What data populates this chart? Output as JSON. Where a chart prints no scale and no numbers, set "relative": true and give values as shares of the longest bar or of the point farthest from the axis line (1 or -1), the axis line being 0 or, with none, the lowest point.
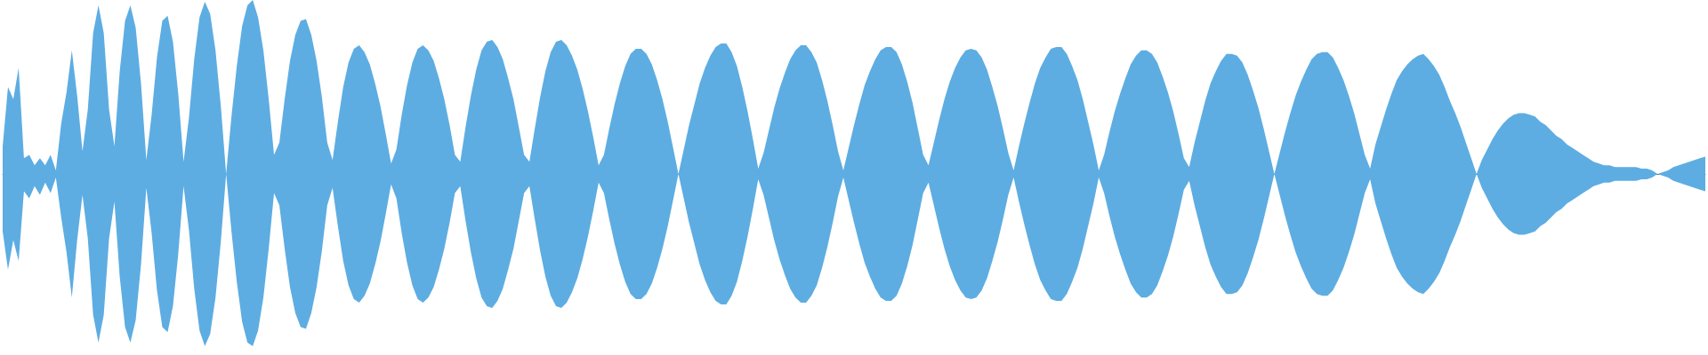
{
  "chart_data": {
    "type": "area",
    "relative": true,
    "categories": [
      null,
      null,
      null,
      null,
      null,
      null,
      null,
      null,
      null,
      null,
      null,
      null,
      null,
      null,
      null,
      null,
      null,
      null,
      null,
      null,
      null,
      null,
      null,
      null,
      null,
      null,
      null,
      null,
      null,
      null,
      null,
      null,
      null,
      null,
      null,
      null,
      null,
      null,
      null,
      null,
      null,
      null,
      null,
      null,
      null,
      null,
      null,
      null,
      null,
      null,
      null,
      null,
      null,
      null,
      null,
      null,
      null,
      null,
      null,
      null,
      null,
      null,
      null,
      null,
      null,
      null,
      null,
      null,
      null,
      null,
      null,
      null,
      null,
      null,
      null,
      null,
      null,
      null,
      null,
      null,
      null,
      null,
      null,
      null,
      null,
      null,
      null,
      null,
      null,
      null,
      null,
      null,
      null,
      null,
      null,
      null,
      null,
      null,
      null,
      null,
      null,
      null,
      null,
      null,
      null,
      null,
      null,
      null,
      null,
      null,
      null,
      null,
      null,
      null,
      null,
      null,
      null,
      null,
      null,
      null,
      null,
      null,
      null,
      null,
      null,
      null,
      null,
      null,
      null,
      null,
      null,
      null,
      null,
      null,
      null,
      null,
      null,
      null,
      null,
      null,
      null,
      null,
      null,
      null,
      null,
      null,
      null,
      null,
      null,
      null,
      null,
      null,
      null,
      null,
      null,
      null,
      null,
      null,
      null,
      null,
      null,
      null,
      null,
      null,
      null,
      null,
      null,
      null,
      null,
      null,
      null,
      null,
      null,
      null,
      null,
      null,
      null,
      null,
      null,
      null,
      null,
      null,
      null,
      null,
      null,
      null,
      null,
      null,
      null,
      null,
      null,
      null,
      null,
      null,
      null,
      null,
      null,
      null,
      null,
      null,
      null,
      null,
      null,
      null,
      null,
      null,
      null,
      null,
      null,
      null,
      null,
      null,
      null,
      null,
      null,
      null,
      null,
      null,
      null,
      null,
      null,
      null,
      null,
      null,
      null,
      null,
      null,
      null,
      null,
      null,
      null,
      null,
      null,
      null,
      null,
      null,
      null,
      null,
      null,
      null,
      null,
      null,
      null,
      null,
      null,
      null,
      null,
      null,
      null,
      null,
      null,
      null,
      null,
      null,
      null,
      null,
      null,
      null,
      null,
      null,
      null,
      null,
      null,
      null,
      null,
      null,
      null,
      null,
      null,
      null,
      null,
      null,
      null,
      null,
      null,
      null,
      null,
      null,
      null,
      null,
      null,
      null,
      null,
      null,
      null,
      null,
      null,
      null,
      null,
      null,
      null,
      null,
      null,
      null,
      null,
      null,
      null,
      null,
      null,
      null,
      null,
      null,
      null,
      null,
      null,
      null,
      null,
      null,
      null,
      null,
      null,
      null,
      null,
      null,
      null,
      null,
      null,
      null,
      null,
      null,
      null
    ],
    "series": [
      {
        "color": "#5dade2",
        "values": [
          0.16,
          0.5,
          0.43,
          0.61,
          0.09,
          0.11,
          0.05,
          0.09,
          0.05,
          0.11,
          0.02,
          0.29,
          0.47,
          0.71,
          0.45,
          0.13,
          0.37,
          0.81,
          0.97,
          0.81,
          0.37,
          0.16,
          0.59,
          0.88,
          0.97,
          0.84,
          0.52,
          0.08,
          0.34,
          0.67,
          0.88,
          0.91,
          0.76,
          0.46,
          0.07,
          0.32,
          0.66,
          0.9,
          0.99,
          0.92,
          0.71,
          0.39,
          0,
          0.33,
          0.62,
          0.85,
          0.97,
          1.0,
          0.9,
          0.71,
          0.43,
          0.11,
          0.18,
          0.43,
          0.65,
          0.8,
          0.88,
          0.89,
          0.8,
          0.65,
          0.44,
          0.18,
          0.08,
          0.3,
          0.5,
          0.64,
          0.72,
          0.74,
          0.7,
          0.63,
          0.52,
          0.39,
          0.23,
          0.06,
          0.14,
          0.34,
          0.51,
          0.64,
          0.72,
          0.74,
          0.71,
          0.65,
          0.55,
          0.43,
          0.28,
          0.11,
          0.07,
          0.27,
          0.45,
          0.6,
          0.71,
          0.76,
          0.77,
          0.73,
          0.66,
          0.55,
          0.43,
          0.27,
          0.11,
          0.07,
          0.26,
          0.44,
          0.59,
          0.7,
          0.76,
          0.77,
          0.74,
          0.68,
          0.6,
          0.49,
          0.36,
          0.21,
          0.05,
          0.11,
          0.26,
          0.4,
          0.52,
          0.62,
          0.69,
          0.72,
          0.72,
          0.69,
          0.63,
          0.54,
          0.43,
          0.3,
          0.15,
          0,
          0.14,
          0.28,
          0.4,
          0.52,
          0.61,
          0.68,
          0.73,
          0.75,
          0.75,
          0.7,
          0.62,
          0.5,
          0.36,
          0.2,
          0.03,
          0.12,
          0.25,
          0.38,
          0.49,
          0.58,
          0.66,
          0.71,
          0.74,
          0.74,
          0.7,
          0.64,
          0.54,
          0.42,
          0.28,
          0.13,
          0.02,
          0.15,
          0.28,
          0.4,
          0.51,
          0.59,
          0.66,
          0.71,
          0.73,
          0.73,
          0.7,
          0.63,
          0.53,
          0.41,
          0.26,
          0.11,
          0.05,
          0.18,
          0.31,
          0.43,
          0.53,
          0.61,
          0.67,
          0.71,
          0.72,
          0.71,
          0.67,
          0.6,
          0.5,
          0.39,
          0.26,
          0.12,
          0.02,
          0.16,
          0.29,
          0.41,
          0.52,
          0.61,
          0.67,
          0.72,
          0.73,
          0.73,
          0.69,
          0.62,
          0.54,
          0.43,
          0.3,
          0.17,
          0.02,
          0.11,
          0.24,
          0.36,
          0.46,
          0.55,
          0.63,
          0.68,
          0.71,
          0.71,
          0.69,
          0.64,
          0.56,
          0.47,
          0.36,
          0.23,
          0.09,
          0.04,
          0.18,
          0.3,
          0.42,
          0.52,
          0.59,
          0.65,
          0.69,
          0.69,
          0.68,
          0.64,
          0.57,
          0.48,
          0.38,
          0.26,
          0.13,
          0,
          0.12,
          0.24,
          0.35,
          0.45,
          0.53,
          0.6,
          0.66,
          0.69,
          0.7,
          0.7,
          0.67,
          0.61,
          0.54,
          0.45,
          0.35,
          0.23,
          0.11,
          0.03,
          0.17,
          0.27,
          0.37,
          0.46,
          0.54,
          0.59,
          0.63,
          0.66,
          0.68,
          0.69,
          0.66,
          0.62,
          0.57,
          0.5,
          0.42,
          0.35,
          0.27,
          0.18,
          0.09,
          0,
          0.08,
          0.14,
          0.2,
          0.25,
          0.29,
          0.32,
          0.34,
          0.35,
          0.35,
          0.34,
          0.33,
          0.3,
          0.28,
          0.25,
          0.22,
          0.2,
          0.17,
          0.15,
          0.13,
          0.11,
          0.09,
          0.07,
          0.06,
          0.05,
          0.05,
          0.04,
          0.04,
          0.04,
          0.04,
          0.04,
          0.03,
          0.03,
          0.02,
          0,
          0.01,
          0.02,
          0.04,
          0.05,
          0.06,
          0.07,
          0.08,
          0.09,
          0.1
        ]
      },
      {
        "color": "#5dade2",
        "values": [
          -0.33,
          -0.55,
          -0.38,
          -0.5,
          -0.1,
          -0.14,
          -0.07,
          -0.12,
          -0.05,
          -0.11,
          -0.02,
          -0.25,
          -0.45,
          -0.71,
          -0.38,
          -0.12,
          -0.37,
          -0.81,
          -0.97,
          -0.81,
          -0.37,
          -0.16,
          -0.59,
          -0.88,
          -0.97,
          -0.84,
          -0.52,
          -0.08,
          -0.34,
          -0.67,
          -0.88,
          -0.91,
          -0.76,
          -0.46,
          -0.07,
          -0.32,
          -0.66,
          -0.9,
          -0.99,
          -0.92,
          -0.71,
          -0.39,
          0,
          -0.33,
          -0.62,
          -0.85,
          -0.97,
          -0.99,
          -0.9,
          -0.71,
          -0.43,
          -0.11,
          -0.18,
          -0.43,
          -0.65,
          -0.8,
          -0.88,
          -0.89,
          -0.8,
          -0.65,
          -0.44,
          -0.18,
          -0.08,
          -0.3,
          -0.5,
          -0.64,
          -0.72,
          -0.74,
          -0.7,
          -0.63,
          -0.52,
          -0.39,
          -0.23,
          -0.06,
          -0.14,
          -0.34,
          -0.51,
          -0.64,
          -0.72,
          -0.74,
          -0.71,
          -0.65,
          -0.55,
          -0.43,
          -0.28,
          -0.11,
          -0.07,
          -0.27,
          -0.45,
          -0.6,
          -0.71,
          -0.76,
          -0.77,
          -0.73,
          -0.66,
          -0.55,
          -0.43,
          -0.27,
          -0.11,
          -0.07,
          -0.26,
          -0.44,
          -0.59,
          -0.7,
          -0.76,
          -0.77,
          -0.74,
          -0.68,
          -0.6,
          -0.49,
          -0.36,
          -0.21,
          -0.05,
          -0.11,
          -0.26,
          -0.4,
          -0.52,
          -0.62,
          -0.69,
          -0.72,
          -0.72,
          -0.69,
          -0.63,
          -0.54,
          -0.43,
          -0.3,
          -0.15,
          0,
          -0.14,
          -0.28,
          -0.4,
          -0.52,
          -0.61,
          -0.68,
          -0.73,
          -0.75,
          -0.75,
          -0.7,
          -0.62,
          -0.5,
          -0.36,
          -0.2,
          -0.03,
          -0.12,
          -0.25,
          -0.38,
          -0.49,
          -0.58,
          -0.66,
          -0.71,
          -0.74,
          -0.74,
          -0.7,
          -0.64,
          -0.54,
          -0.42,
          -0.28,
          -0.13,
          -0.02,
          -0.15,
          -0.28,
          -0.4,
          -0.51,
          -0.59,
          -0.66,
          -0.71,
          -0.73,
          -0.73,
          -0.7,
          -0.63,
          -0.53,
          -0.41,
          -0.26,
          -0.11,
          -0.05,
          -0.18,
          -0.31,
          -0.43,
          -0.53,
          -0.61,
          -0.67,
          -0.71,
          -0.72,
          -0.71,
          -0.67,
          -0.6,
          -0.5,
          -0.39,
          -0.26,
          -0.12,
          -0.02,
          -0.16,
          -0.29,
          -0.41,
          -0.52,
          -0.61,
          -0.67,
          -0.72,
          -0.73,
          -0.73,
          -0.69,
          -0.62,
          -0.54,
          -0.43,
          -0.3,
          -0.17,
          -0.02,
          -0.11,
          -0.24,
          -0.36,
          -0.46,
          -0.55,
          -0.63,
          -0.68,
          -0.71,
          -0.71,
          -0.69,
          -0.64,
          -0.56,
          -0.47,
          -0.36,
          -0.23,
          -0.09,
          -0.04,
          -0.18,
          -0.3,
          -0.42,
          -0.52,
          -0.59,
          -0.65,
          -0.69,
          -0.69,
          -0.68,
          -0.64,
          -0.57,
          -0.48,
          -0.38,
          -0.26,
          -0.13,
          0,
          -0.12,
          -0.24,
          -0.35,
          -0.45,
          -0.53,
          -0.6,
          -0.66,
          -0.69,
          -0.7,
          -0.7,
          -0.67,
          -0.61,
          -0.54,
          -0.45,
          -0.35,
          -0.23,
          -0.11,
          -0.03,
          -0.17,
          -0.27,
          -0.37,
          -0.46,
          -0.54,
          -0.59,
          -0.63,
          -0.66,
          -0.68,
          -0.69,
          -0.66,
          -0.62,
          -0.57,
          -0.5,
          -0.42,
          -0.35,
          -0.27,
          -0.18,
          -0.09,
          0,
          -0.08,
          -0.14,
          -0.2,
          -0.25,
          -0.29,
          -0.32,
          -0.34,
          -0.35,
          -0.35,
          -0.34,
          -0.33,
          -0.3,
          -0.28,
          -0.25,
          -0.22,
          -0.2,
          -0.17,
          -0.15,
          -0.13,
          -0.11,
          -0.09,
          -0.07,
          -0.06,
          -0.05,
          -0.05,
          -0.04,
          -0.04,
          -0.04,
          -0.04,
          -0.04,
          -0.03,
          -0.03,
          -0.02,
          0,
          -0.01,
          -0.02,
          -0.04,
          -0.05,
          -0.06,
          -0.07,
          -0.08,
          -0.09,
          -0.1
        ]
      }
    ]
  }
}
